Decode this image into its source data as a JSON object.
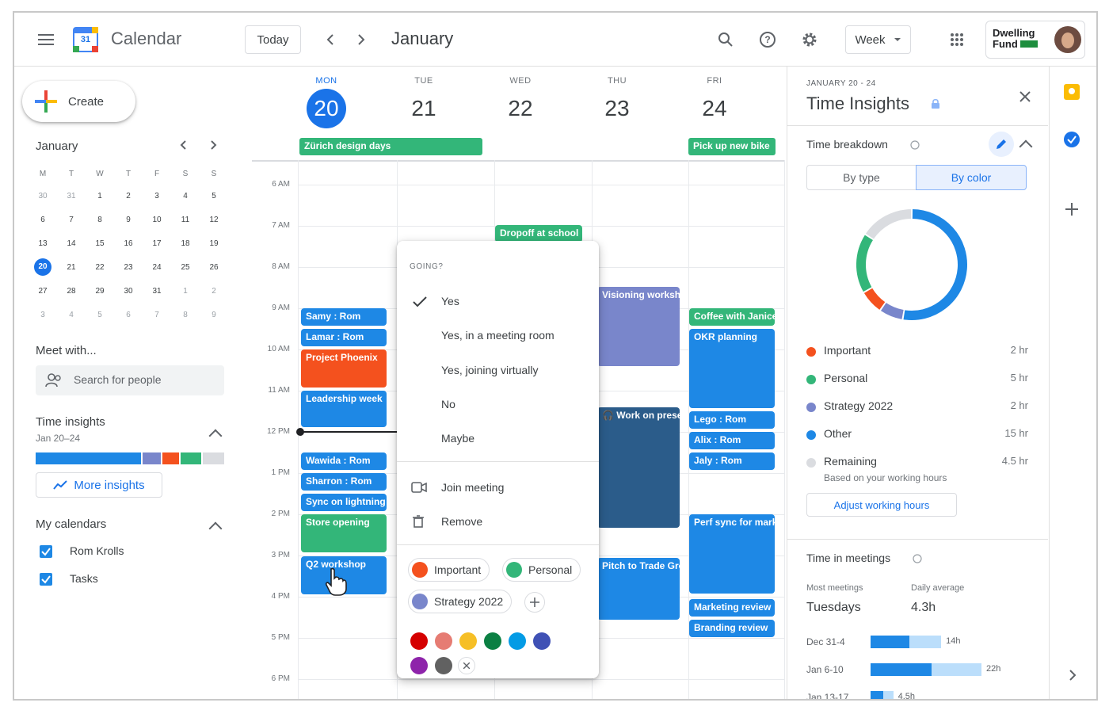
{
  "header": {
    "app_title": "Calendar",
    "logo_day": "31",
    "today_label": "Today",
    "month": "January",
    "view_label": "Week",
    "org_name_line1": "Dwelling",
    "org_name_line2": "Fund"
  },
  "sidebar": {
    "create_label": "Create",
    "mini_cal": {
      "month": "January",
      "dow": [
        "M",
        "T",
        "W",
        "T",
        "F",
        "S",
        "S"
      ],
      "weeks": [
        [
          {
            "d": "30",
            "m": true
          },
          {
            "d": "31",
            "m": true
          },
          {
            "d": "1"
          },
          {
            "d": "2"
          },
          {
            "d": "3"
          },
          {
            "d": "4"
          },
          {
            "d": "5"
          }
        ],
        [
          {
            "d": "6"
          },
          {
            "d": "7"
          },
          {
            "d": "8"
          },
          {
            "d": "9"
          },
          {
            "d": "10"
          },
          {
            "d": "11"
          },
          {
            "d": "12"
          }
        ],
        [
          {
            "d": "13"
          },
          {
            "d": "14"
          },
          {
            "d": "15"
          },
          {
            "d": "16"
          },
          {
            "d": "17"
          },
          {
            "d": "18"
          },
          {
            "d": "19"
          }
        ],
        [
          {
            "d": "20",
            "t": true
          },
          {
            "d": "21"
          },
          {
            "d": "22"
          },
          {
            "d": "23"
          },
          {
            "d": "24"
          },
          {
            "d": "25"
          },
          {
            "d": "26"
          }
        ],
        [
          {
            "d": "27"
          },
          {
            "d": "28"
          },
          {
            "d": "29"
          },
          {
            "d": "30"
          },
          {
            "d": "31"
          },
          {
            "d": "1",
            "m": true
          },
          {
            "d": "2",
            "m": true
          }
        ],
        [
          {
            "d": "3",
            "m": true
          },
          {
            "d": "4",
            "m": true
          },
          {
            "d": "5",
            "m": true
          },
          {
            "d": "6",
            "m": true
          },
          {
            "d": "7",
            "m": true
          },
          {
            "d": "8",
            "m": true
          },
          {
            "d": "9",
            "m": true
          }
        ]
      ]
    },
    "meet_with": "Meet with...",
    "search_people_placeholder": "Search for people",
    "time_insights_title": "Time insights",
    "time_insights_range": "Jan 20–24",
    "more_insights": "More insights",
    "my_calendars_title": "My calendars",
    "calendars": [
      "Rom Krolls",
      "Tasks"
    ]
  },
  "week": {
    "days": [
      {
        "dow": "MON",
        "num": "20",
        "today": true
      },
      {
        "dow": "TUE",
        "num": "21"
      },
      {
        "dow": "WED",
        "num": "22"
      },
      {
        "dow": "THU",
        "num": "23"
      },
      {
        "dow": "FRI",
        "num": "24"
      }
    ],
    "hours": [
      "6 AM",
      "7 AM",
      "8 AM",
      "9 AM",
      "10 AM",
      "11 AM",
      "12 PM",
      "1 PM",
      "2 PM",
      "3 PM",
      "4 PM",
      "5 PM",
      "6 PM"
    ],
    "all_day": [
      "Zürich design days",
      "Pick up new bike"
    ],
    "events": {
      "samy": "Samy : Rom",
      "lamar": "Lamar : Rom",
      "phoenix": "Project Phoenix",
      "leadership": "Leadership week",
      "wawida": "Wawida : Rom",
      "sharron": "Sharron : Rom",
      "sync": "Sync on lightning",
      "store": "Store opening",
      "q2": "Q2 workshop",
      "dropoff": "Dropoff at school",
      "visioning": "Visioning workshop",
      "work_on": "Work on presentation",
      "pitch": "Pitch to Trade Group",
      "coffee": "Coffee with Janice",
      "okr": "OKR planning",
      "lego": "Lego : Rom",
      "alix": "Alix : Rom",
      "jaly": "Jaly : Rom",
      "perf": "Perf sync for marketing",
      "marketing": "Marketing review",
      "branding": "Branding review"
    }
  },
  "popup": {
    "going": "GOING?",
    "options": [
      "Yes",
      "Yes, in a meeting room",
      "Yes, joining virtually",
      "No",
      "Maybe"
    ],
    "join_meeting": "Join meeting",
    "remove": "Remove",
    "chips": [
      {
        "label": "Important",
        "color": "#f4511e"
      },
      {
        "label": "Personal",
        "color": "#33b679"
      },
      {
        "label": "Strategy 2022",
        "color": "#7986cb"
      }
    ],
    "swatches": [
      "#d50000",
      "#e67c73",
      "#f6bf26",
      "#0b8043",
      "#039be5",
      "#3f51b5",
      "#8e24aa",
      "#616161"
    ]
  },
  "insights": {
    "range": "JANUARY 20 - 24",
    "title": "Time Insights",
    "breakdown_title": "Time breakdown",
    "tab_by_type": "By type",
    "tab_by_color": "By color",
    "legend": [
      {
        "label": "Important",
        "value": "2 hr",
        "color": "#f4511e",
        "hours": 2
      },
      {
        "label": "Personal",
        "value": "5 hr",
        "color": "#33b679",
        "hours": 5
      },
      {
        "label": "Strategy 2022",
        "value": "2 hr",
        "color": "#7986cb",
        "hours": 2
      },
      {
        "label": "Other",
        "value": "15 hr",
        "color": "#1e88e5",
        "hours": 15
      },
      {
        "label": "Remaining",
        "value": "4.5 hr",
        "color": "#dadce0",
        "hours": 4.5
      }
    ],
    "remaining_note": "Based on your working hours",
    "adjust_hours": "Adjust working hours",
    "meetings_title": "Time in meetings",
    "most_meetings_label": "Most meetings",
    "most_meetings_value": "Tuesdays",
    "daily_avg_label": "Daily average",
    "daily_avg_value": "4.3h",
    "bars": [
      {
        "label": "Dec 31-4",
        "value": "14h",
        "hours": 14
      },
      {
        "label": "Jan 6-10",
        "value": "22h",
        "hours": 22
      },
      {
        "label": "Jan 13-17",
        "value": "4.5h",
        "hours": 4.5
      }
    ]
  }
}
